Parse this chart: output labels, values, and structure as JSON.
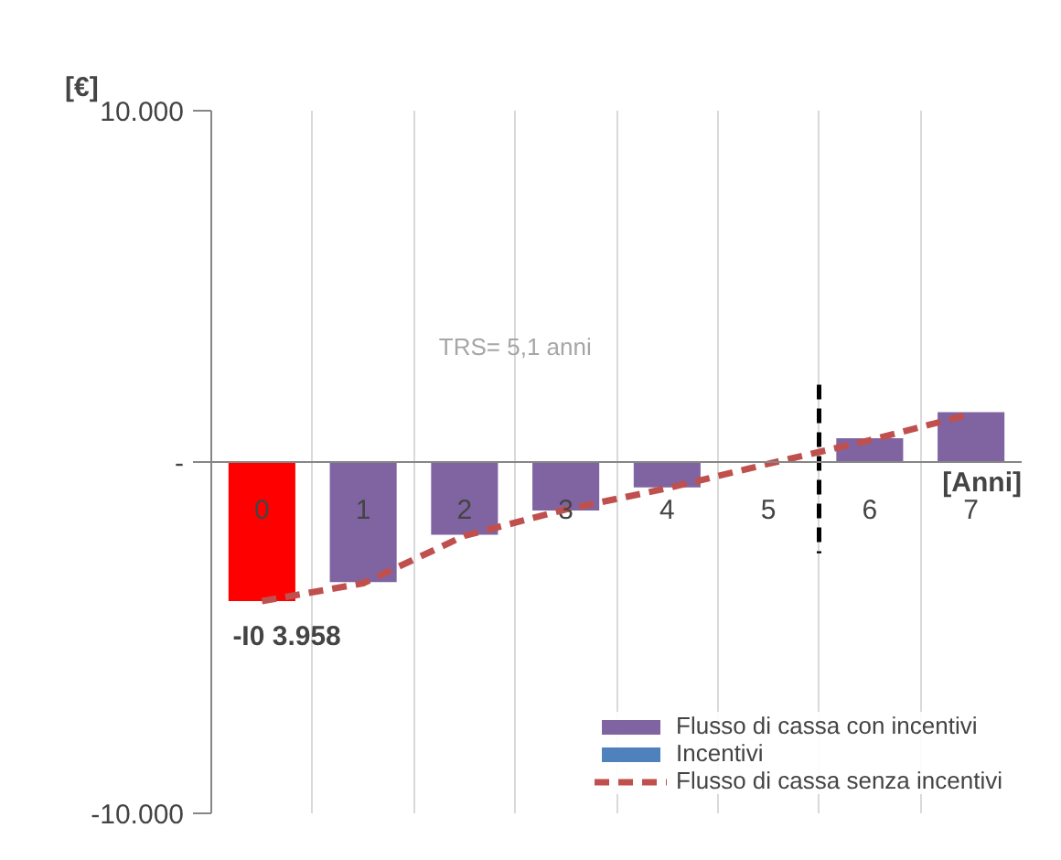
{
  "chart_data": {
    "type": "bar",
    "ylabel": "[€]",
    "xlabel": "[Anni]",
    "x": [
      0,
      1,
      2,
      3,
      4,
      5,
      6,
      7
    ],
    "xlim": [
      -0.5,
      7.5
    ],
    "xticks": [
      0,
      1,
      2,
      3,
      4,
      5,
      6,
      7
    ],
    "ylim": [
      -10000,
      10000
    ],
    "yticks": [
      {
        "value": -10000,
        "label": "-10.000"
      },
      {
        "value": 0,
        "label": "-"
      },
      {
        "value": 10000,
        "label": "10.000"
      }
    ],
    "grid": "x",
    "series": [
      {
        "name": "Flusso di cassa con incentivi",
        "color": "#8064a2",
        "colors": [
          "#ff0000",
          "#8064a2",
          "#8064a2",
          "#8064a2",
          "#8064a2",
          "#8064a2",
          "#8064a2",
          "#8064a2"
        ],
        "values": [
          -3960,
          -3420,
          -2070,
          -1380,
          -720,
          0,
          680,
          1420
        ]
      },
      {
        "name": "Incentivi",
        "color": "#4f81bd",
        "values": [
          null,
          null,
          null,
          null,
          null,
          null,
          null,
          null
        ]
      },
      {
        "name": "Flusso di cassa senza incentivi",
        "type": "line",
        "line_style": "dashed",
        "color": "#c0504d",
        "values": [
          -3960,
          -3450,
          -2100,
          -1350,
          -750,
          -50,
          620,
          1370
        ]
      }
    ],
    "ref_lines": [
      {
        "axis": "x",
        "value": 5.5,
        "label": null,
        "color": "#000000",
        "line_style": "dashed"
      }
    ],
    "annotations": [
      {
        "text": "-I0 3.958",
        "x": 0,
        "y": -3960
      },
      "TRS= 5,1 anni"
    ],
    "legend": "bottom right"
  }
}
